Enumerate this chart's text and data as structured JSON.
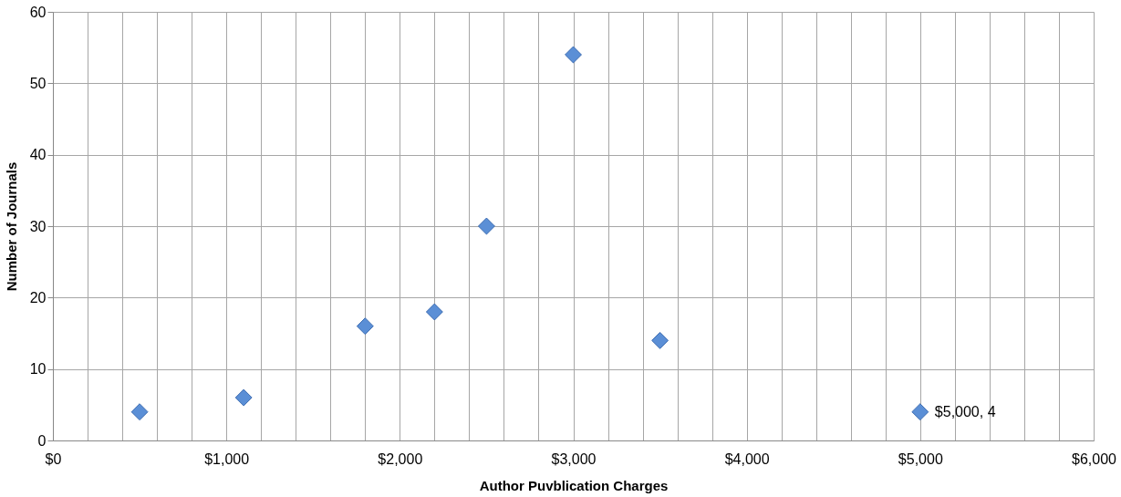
{
  "chart_data": {
    "type": "scatter",
    "xlabel": "Author Puvblication Charges",
    "ylabel": "Number of Journals",
    "x": [
      500,
      1100,
      1800,
      2200,
      2500,
      3000,
      3500,
      5000
    ],
    "series": [
      {
        "color": "#5b8fd6",
        "values": [
          4,
          6,
          16,
          18,
          30,
          54,
          14,
          4
        ]
      }
    ],
    "xlim": [
      0,
      6000
    ],
    "xticks": [
      {
        "value": 0,
        "label": "$0"
      },
      {
        "value": 200,
        "label": null
      },
      {
        "value": 400,
        "label": null
      },
      {
        "value": 600,
        "label": null
      },
      {
        "value": 800,
        "label": null
      },
      {
        "value": 1000,
        "label": "$1,000"
      },
      {
        "value": 1200,
        "label": null
      },
      {
        "value": 1400,
        "label": null
      },
      {
        "value": 1600,
        "label": null
      },
      {
        "value": 1800,
        "label": null
      },
      {
        "value": 2000,
        "label": "$2,000"
      },
      {
        "value": 2200,
        "label": null
      },
      {
        "value": 2400,
        "label": null
      },
      {
        "value": 2600,
        "label": null
      },
      {
        "value": 2800,
        "label": null
      },
      {
        "value": 3000,
        "label": "$3,000"
      },
      {
        "value": 3200,
        "label": null
      },
      {
        "value": 3400,
        "label": null
      },
      {
        "value": 3600,
        "label": null
      },
      {
        "value": 3800,
        "label": null
      },
      {
        "value": 4000,
        "label": "$4,000"
      },
      {
        "value": 4200,
        "label": null
      },
      {
        "value": 4400,
        "label": null
      },
      {
        "value": 4600,
        "label": null
      },
      {
        "value": 4800,
        "label": null
      },
      {
        "value": 5000,
        "label": "$5,000"
      },
      {
        "value": 5200,
        "label": null
      },
      {
        "value": 5400,
        "label": null
      },
      {
        "value": 5600,
        "label": null
      },
      {
        "value": 5800,
        "label": null
      },
      {
        "value": 6000,
        "label": "$6,000"
      }
    ],
    "ylim": [
      0,
      60
    ],
    "yticks": [
      0,
      10,
      20,
      30,
      40,
      50,
      60
    ],
    "grid": true,
    "marker": "diamond",
    "annotations": [
      {
        "text": "$5,000, 4",
        "x": 5000,
        "y": 4
      }
    ]
  }
}
